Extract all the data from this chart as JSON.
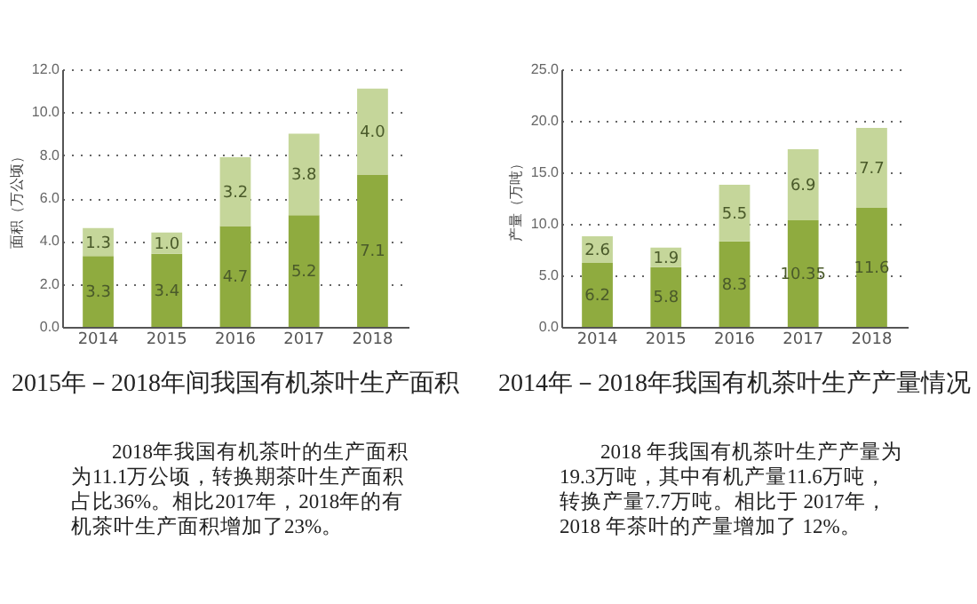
{
  "chart_data": [
    {
      "type": "bar",
      "stacked": true,
      "title": "2015年－2018年间我国有机茶叶生产面积",
      "ylabel": "面积（万公顷）",
      "categories": [
        "2014",
        "2015",
        "2016",
        "2017",
        "2018"
      ],
      "series": [
        {
          "color": "#8fab3f",
          "values": [
            3.3,
            3.4,
            4.7,
            5.2,
            7.1
          ],
          "value_labels": [
            "3.3",
            "3.4",
            "4.7",
            "5.2",
            "7.1"
          ]
        },
        {
          "color": "#c5d69a",
          "values": [
            1.3,
            1.0,
            3.2,
            3.8,
            4.0
          ],
          "value_labels": [
            "1.3",
            "1.0",
            "3.2",
            "3.8",
            "4.0"
          ]
        }
      ],
      "ylim": [
        0,
        12
      ],
      "yticks": [
        {
          "value": 0,
          "label": "0.0"
        },
        {
          "value": 2,
          "label": "2.0"
        },
        {
          "value": 4,
          "label": "4.0"
        },
        {
          "value": 6,
          "label": "6.0"
        },
        {
          "value": 8,
          "label": "8.0"
        },
        {
          "value": 10,
          "label": "10.0"
        },
        {
          "value": 12,
          "label": "12.0"
        }
      ],
      "grid": "y",
      "annotations": [
        "2018年我国有机茶叶的生产面积为11.1万公顷，转换期茶叶生产面积占比36%。相比2017年，2018年的有机茶叶生产面积增加了23%。"
      ]
    },
    {
      "type": "bar",
      "stacked": true,
      "title": "2014年－2018年我国有机茶叶生产产量情况",
      "ylabel": "产量（万吨）",
      "categories": [
        "2014",
        "2015",
        "2016",
        "2017",
        "2018"
      ],
      "series": [
        {
          "color": "#8fab3f",
          "values": [
            6.2,
            5.8,
            8.3,
            10.35,
            11.6
          ],
          "value_labels": [
            "6.2",
            "5.8",
            "8.3",
            "10.35",
            "11.6"
          ]
        },
        {
          "color": "#c5d69a",
          "values": [
            2.6,
            1.9,
            5.5,
            6.9,
            7.7
          ],
          "value_labels": [
            "2.6",
            "1.9",
            "5.5",
            "6.9",
            "7.7"
          ]
        }
      ],
      "ylim": [
        0,
        25
      ],
      "yticks": [
        {
          "value": 0,
          "label": "0.0"
        },
        {
          "value": 5,
          "label": "5.0"
        },
        {
          "value": 10,
          "label": "10.0"
        },
        {
          "value": 15,
          "label": "15.0"
        },
        {
          "value": 20,
          "label": "20.0"
        },
        {
          "value": 25,
          "label": "25.0"
        }
      ],
      "grid": "y",
      "annotations": [
        "2018 年我国有机茶叶生产产量为 19.3万吨，其中有机产量11.6万吨，转换产量7.7万吨。相比于 2017年，2018 年茶叶的产量增加了 12%。"
      ]
    }
  ]
}
